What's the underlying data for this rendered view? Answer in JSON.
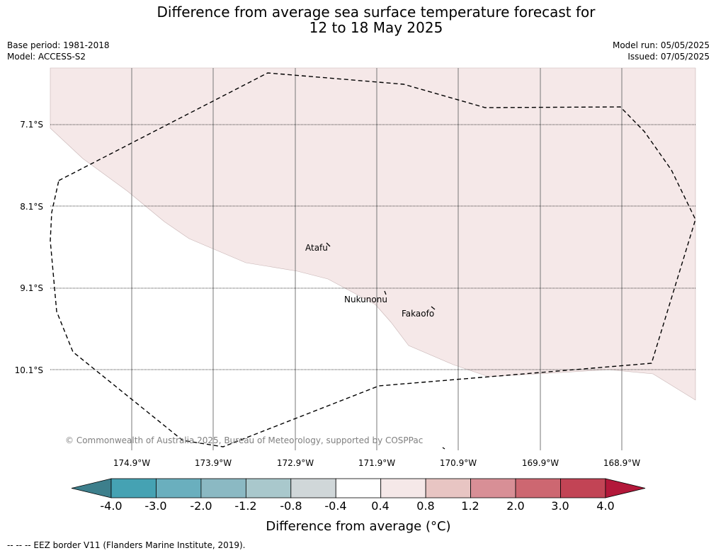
{
  "title": {
    "line1": "Difference from average sea surface temperature forecast for",
    "line2": "12 to 18 May 2025"
  },
  "meta": {
    "base_period": "Base period: 1981-2018",
    "model": "Model: ACCESS-S2",
    "model_run": "Model run: 05/05/2025",
    "issued": "Issued: 07/05/2025"
  },
  "map": {
    "lat_labels": [
      "7.1°S",
      "8.1°S",
      "9.1°S",
      "10.1°S"
    ],
    "lon_labels": [
      "174.9°W",
      "173.9°W",
      "172.9°W",
      "171.9°W",
      "170.9°W",
      "169.9°W",
      "168.9°W"
    ],
    "places": [
      "Atafu",
      "Nukunonu",
      "Fakaofo"
    ],
    "copyright": "© Commonwealth of Australia 2025, Bureau of Meteorology, supported by COSPPac",
    "anomaly_shading": "0.4 to 0.8"
  },
  "colorbar": {
    "title": "Difference from average (°C)",
    "labels": [
      "-4.0",
      "-3.0",
      "-2.0",
      "-1.2",
      "-0.8",
      "-0.4",
      "0.4",
      "0.8",
      "1.2",
      "2.0",
      "3.0",
      "4.0"
    ],
    "colors": [
      "#3d7f8c",
      "#45a2b3",
      "#6aafbe",
      "#8bb9c3",
      "#a9c8cc",
      "#d0d7d9",
      "#ffffff",
      "#f5e8e8",
      "#e8c5c3",
      "#d88f96",
      "#cd6771",
      "#c24455",
      "#b3183a"
    ]
  },
  "footnote": "--  --  -- EEZ border V11 (Flanders Marine Institute, 2019)."
}
